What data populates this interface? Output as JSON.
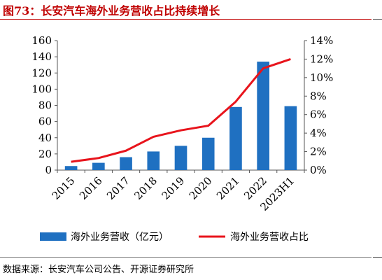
{
  "figure": {
    "title": "图73：长安汽车海外业务营收占比持续增长",
    "source": "数据来源：长安汽车公司公告、开源证券研究所"
  },
  "colors": {
    "bar": "#1f70c1",
    "line": "#e8141c",
    "title": "#c00000"
  },
  "chart_data": {
    "type": "bar",
    "categories": [
      "2015",
      "2016",
      "2017",
      "2018",
      "2019",
      "2020",
      "2021",
      "2022",
      "2023H1"
    ],
    "series": [
      {
        "name": "海外业务营收（亿元）",
        "type": "bar",
        "axis": "left",
        "values": [
          5,
          9,
          16,
          23,
          30,
          40,
          78,
          134,
          79
        ]
      },
      {
        "name": "海外业务营收占比",
        "type": "line",
        "axis": "right",
        "values": [
          0.9,
          1.3,
          2.1,
          3.6,
          4.3,
          4.8,
          7.4,
          11.0,
          12.0
        ]
      }
    ],
    "y_left": {
      "ylim": [
        0,
        160
      ],
      "ticks": [
        "0",
        "20",
        "40",
        "60",
        "80",
        "100",
        "120",
        "140",
        "160"
      ]
    },
    "y_right": {
      "ylim": [
        0,
        14
      ],
      "ticks": [
        "0%",
        "2%",
        "4%",
        "6%",
        "8%",
        "10%",
        "12%",
        "14%"
      ]
    },
    "grid": false,
    "legend": "bottom"
  }
}
